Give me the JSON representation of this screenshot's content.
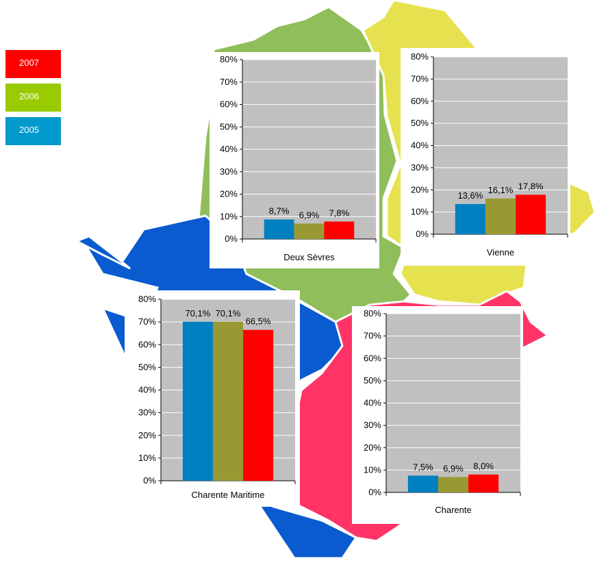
{
  "colors": {
    "map_green": "#8fbe5a",
    "map_yellow": "#e6e24f",
    "map_blue": "#0a5bd0",
    "map_pink": "#ff3366",
    "plot_bg": "#c0c0c0"
  },
  "legend": [
    {
      "label": "2007",
      "color": "#ff0000"
    },
    {
      "label": "2006",
      "color": "#99cc00"
    },
    {
      "label": "2005",
      "color": "#0099cc"
    }
  ],
  "chart_data": [
    {
      "type": "bar",
      "title": "Deux Sèvres",
      "series": [
        {
          "name": "2005",
          "color": "#0080c0",
          "values": [
            8.7
          ],
          "label": "8,7%"
        },
        {
          "name": "2006",
          "color": "#999933",
          "values": [
            6.9
          ],
          "label": "6,9%"
        },
        {
          "name": "2007",
          "color": "#ff0000",
          "values": [
            7.8
          ],
          "label": "7,8%"
        }
      ],
      "ylim": [
        0,
        80
      ],
      "yticks": [
        "0%",
        "10%",
        "20%",
        "30%",
        "40%",
        "50%",
        "60%",
        "70%",
        "80%"
      ],
      "grid": true
    },
    {
      "type": "bar",
      "title": "Vienne",
      "series": [
        {
          "name": "2005",
          "color": "#0080c0",
          "values": [
            13.6
          ],
          "label": "13,6%"
        },
        {
          "name": "2006",
          "color": "#999933",
          "values": [
            16.1
          ],
          "label": "16,1%"
        },
        {
          "name": "2007",
          "color": "#ff0000",
          "values": [
            17.8
          ],
          "label": "17,8%"
        }
      ],
      "ylim": [
        0,
        80
      ],
      "yticks": [
        "0%",
        "10%",
        "20%",
        "30%",
        "40%",
        "50%",
        "60%",
        "70%",
        "80%"
      ],
      "grid": true
    },
    {
      "type": "bar",
      "title": "Charente Maritime",
      "series": [
        {
          "name": "2005",
          "color": "#0080c0",
          "values": [
            70.1
          ],
          "label": "70,1%"
        },
        {
          "name": "2006",
          "color": "#999933",
          "values": [
            70.1
          ],
          "label": "70,1%"
        },
        {
          "name": "2007",
          "color": "#ff0000",
          "values": [
            66.5
          ],
          "label": "66,5%"
        }
      ],
      "ylim": [
        0,
        80
      ],
      "yticks": [
        "0%",
        "10%",
        "20%",
        "30%",
        "40%",
        "50%",
        "60%",
        "70%",
        "80%"
      ],
      "grid": true
    },
    {
      "type": "bar",
      "title": "Charente",
      "series": [
        {
          "name": "2005",
          "color": "#0080c0",
          "values": [
            7.5
          ],
          "label": "7,5%"
        },
        {
          "name": "2006",
          "color": "#999933",
          "values": [
            6.9
          ],
          "label": "6,9%"
        },
        {
          "name": "2007",
          "color": "#ff0000",
          "values": [
            8.0
          ],
          "label": "8,0%"
        }
      ],
      "ylim": [
        0,
        80
      ],
      "yticks": [
        "0%",
        "10%",
        "20%",
        "30%",
        "40%",
        "50%",
        "60%",
        "70%",
        "80%"
      ],
      "grid": true
    }
  ]
}
